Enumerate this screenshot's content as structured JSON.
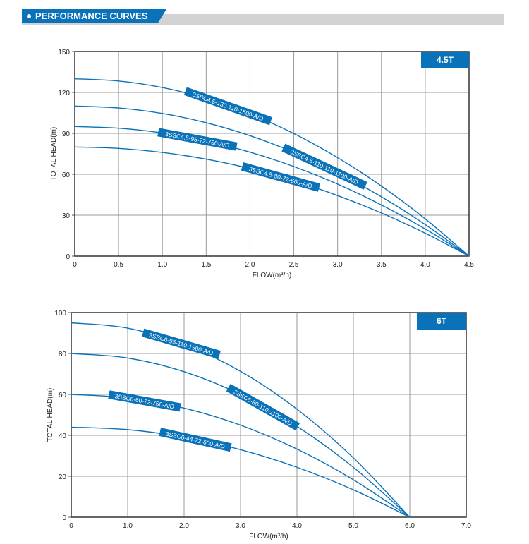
{
  "header": {
    "title": "PERFORMANCE CURVES"
  },
  "colors": {
    "accent": "#0a72b9",
    "grid": "#9a9a9a",
    "header_bar": "#d2d3d4"
  },
  "chart_data": [
    {
      "type": "line",
      "badge": "4.5T",
      "xlabel": "FLOW(m³/h)",
      "ylabel": "TOTAL HEAD(m)",
      "xlim": [
        0,
        4.5
      ],
      "ylim": [
        0,
        150
      ],
      "xticks": [
        "0",
        "0.5",
        "1.0",
        "1.5",
        "2.0",
        "2.5",
        "3.0",
        "3.5",
        "4.0",
        "4.5"
      ],
      "xtick_values": [
        0,
        0.5,
        1,
        1.5,
        2,
        2.5,
        3,
        3.5,
        4,
        4.5
      ],
      "yticks": [
        "0",
        "30",
        "60",
        "90",
        "120",
        "150"
      ],
      "ytick_values": [
        0,
        30,
        60,
        90,
        120,
        150
      ],
      "grid": true,
      "x": [
        0,
        0.5,
        1,
        1.5,
        2,
        2.5,
        3,
        3.5,
        4,
        4.5
      ],
      "series": [
        {
          "name": "3SSC4.5-130-110-1500-A/D",
          "values": [
            130,
            128.4,
            123.6,
            115.6,
            104.3,
            89.9,
            72.2,
            51.4,
            27.3,
            0
          ]
        },
        {
          "name": "3SSC4.5-110-110-1100-A/D",
          "values": [
            110,
            108.6,
            104.6,
            97.8,
            88.3,
            76.1,
            61.1,
            43.5,
            23.1,
            0
          ]
        },
        {
          "name": "3SSC4.5-95-72-750-A/D",
          "values": [
            95,
            93.8,
            90.3,
            84.4,
            76.2,
            65.7,
            52.8,
            37.5,
            19.9,
            0
          ]
        },
        {
          "name": "3SSC4.5-80-72-600-A/D",
          "values": [
            80,
            79.0,
            76.0,
            71.1,
            64.2,
            55.3,
            44.4,
            31.6,
            16.8,
            0
          ]
        }
      ]
    },
    {
      "type": "line",
      "badge": "6T",
      "xlabel": "FLOW(m³/h)",
      "ylabel": "TOTAL HEAD(m)",
      "xlim": [
        0,
        7
      ],
      "ylim": [
        0,
        100
      ],
      "xticks": [
        "0",
        "1.0",
        "2.0",
        "3.0",
        "4.0",
        "5.0",
        "6.0",
        "7.0"
      ],
      "xtick_values": [
        0,
        1,
        2,
        3,
        4,
        5,
        6,
        7
      ],
      "yticks": [
        "0",
        "20",
        "40",
        "60",
        "80",
        "100"
      ],
      "ytick_values": [
        0,
        20,
        40,
        60,
        80,
        100
      ],
      "grid": true,
      "x": [
        0,
        1,
        2,
        3,
        4,
        5,
        6
      ],
      "series": [
        {
          "name": "3SSC6-95-110-1500-A/D",
          "values": [
            95,
            92.4,
            84.4,
            71.3,
            52.8,
            29.0,
            0
          ]
        },
        {
          "name": "3SSC6-80-110-1100-A/D",
          "values": [
            80,
            77.8,
            71.1,
            60,
            44.4,
            24.4,
            0
          ]
        },
        {
          "name": "3SSC6-60-72-750-A/D",
          "values": [
            60,
            58.3,
            53.3,
            45,
            33.3,
            18.3,
            0
          ]
        },
        {
          "name": "3SSC6-44-72-600-A/D",
          "values": [
            44,
            42.8,
            39.1,
            33,
            24.4,
            13.4,
            0
          ]
        }
      ]
    }
  ]
}
